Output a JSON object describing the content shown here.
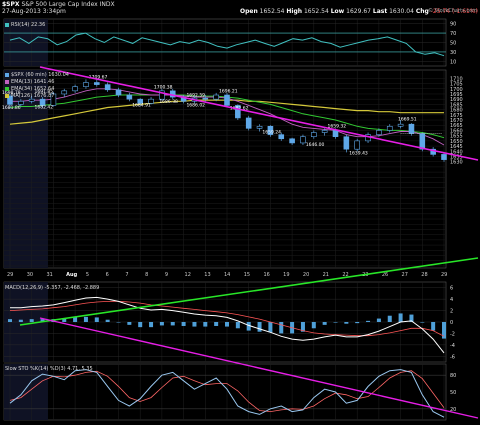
{
  "header": {
    "symbol": "$SPX",
    "name": "S&P 500 Large Cap Index",
    "exchange": "INDX",
    "date": "27-Aug-2013 3:34pm",
    "open_label": "Open",
    "open": "1652.54",
    "high_label": "High",
    "high": "1652.54",
    "low_label": "Low",
    "low": "1629.67",
    "last_label": "Last",
    "last": "1630.04",
    "chg_label": "Chg",
    "chg": "-25.74 (-1.61%)",
    "copyright": "© StockCharts.com"
  },
  "colors": {
    "price": "#5fa8e8",
    "ema": "#c060c0",
    "ema34": "#32c832",
    "ma": "#d4c83a",
    "trend_magenta": "#e61ee6",
    "trend_green": "#28e628",
    "rsi": "#40c0c0"
  },
  "chart_data": [
    {
      "type": "line",
      "panel": "RSI",
      "legend": "RSI(14) 22.36",
      "yticks": [
        90,
        70,
        50,
        30,
        10
      ],
      "ylim": [
        0,
        100
      ],
      "levels": [
        70,
        30
      ],
      "values": [
        55,
        60,
        48,
        62,
        58,
        45,
        52,
        66,
        70,
        58,
        50,
        62,
        55,
        48,
        60,
        55,
        50,
        45,
        52,
        48,
        55,
        50,
        42,
        38,
        45,
        50,
        55,
        48,
        42,
        50,
        58,
        55,
        60,
        52,
        48,
        40,
        45,
        50,
        55,
        58,
        62,
        55,
        48,
        30,
        25,
        28,
        22
      ]
    },
    {
      "type": "candlestick",
      "panel": "price",
      "legend": [
        "$SPX (60 min) 1630.04",
        "EMA(13) 1641.46",
        "EMA(34) 1652.64",
        "MA(126) 1676.87"
      ],
      "ylim": [
        1528,
        1718
      ],
      "yticks": [
        1530,
        1535,
        1540,
        1545,
        1550,
        1555,
        1560,
        1565,
        1570,
        1575,
        1580,
        1585,
        1590,
        1595,
        1600,
        1605,
        1610,
        1615,
        1620,
        1625,
        1630,
        1635,
        1640,
        1645,
        1650,
        1655,
        1660,
        1665,
        1670,
        1675,
        1680,
        1685,
        1690,
        1695,
        1700,
        1705,
        1710
      ],
      "ytick_labels": [
        "1710",
        "1705",
        "1700",
        "1695",
        "1690",
        "1685",
        "1680",
        "1675",
        "1670",
        "1665",
        "1660",
        "1655",
        "1650",
        "1645",
        "1640",
        "1635",
        "1630"
      ],
      "ytick_label_values": [
        1710,
        1705,
        1700,
        1695,
        1690,
        1685,
        1680,
        1675,
        1670,
        1665,
        1660,
        1655,
        1650,
        1645,
        1640,
        1635,
        1630
      ],
      "x_labels": [
        "29",
        "30",
        "31",
        "Aug",
        "5",
        "6",
        "7",
        "8",
        "9",
        "12",
        "13",
        "14",
        "15",
        "16",
        "19",
        "20",
        "21",
        "22",
        "23",
        "26",
        "27",
        "28",
        "29"
      ],
      "annotations": [
        {
          "text": "1709.67",
          "x": 8,
          "y": 1709.67
        },
        {
          "text": "1698.78",
          "x": 0,
          "y": 1695
        },
        {
          "text": "1691.85",
          "x": 3,
          "y": 1696
        },
        {
          "text": "1681.86",
          "x": 0,
          "y": 1680.5
        },
        {
          "text": "1682.42",
          "x": 3,
          "y": 1681
        },
        {
          "text": "1700.38",
          "x": 14,
          "y": 1700.38
        },
        {
          "text": "1696.21",
          "x": 20,
          "y": 1696.21
        },
        {
          "text": "1692.59",
          "x": 17,
          "y": 1692.59
        },
        {
          "text": "1684.91",
          "x": 12,
          "y": 1683
        },
        {
          "text": "1686.38",
          "x": 14.5,
          "y": 1686.38
        },
        {
          "text": "1686.02",
          "x": 17,
          "y": 1683
        },
        {
          "text": "1682.62",
          "x": 21,
          "y": 1680
        },
        {
          "text": "1659.24",
          "x": 24,
          "y": 1657
        },
        {
          "text": "1659.32",
          "x": 30,
          "y": 1663
        },
        {
          "text": "1646.00",
          "x": 28,
          "y": 1645
        },
        {
          "text": "1639.43",
          "x": 32,
          "y": 1637
        },
        {
          "text": "1669.51",
          "x": 36.5,
          "y": 1669.51
        }
      ],
      "candles": [
        [
          1693,
          1695,
          1681,
          1685
        ],
        [
          1685,
          1690,
          1683,
          1688
        ],
        [
          1688,
          1693,
          1686,
          1690
        ],
        [
          1690,
          1692,
          1682,
          1684
        ],
        [
          1684,
          1697,
          1683,
          1695
        ],
        [
          1695,
          1700,
          1692,
          1698
        ],
        [
          1698,
          1704,
          1696,
          1702
        ],
        [
          1702,
          1709,
          1700,
          1706
        ],
        [
          1706,
          1710,
          1702,
          1704
        ],
        [
          1704,
          1706,
          1697,
          1699
        ],
        [
          1699,
          1701,
          1692,
          1694
        ],
        [
          1694,
          1696,
          1688,
          1690
        ],
        [
          1690,
          1691,
          1683,
          1686
        ],
        [
          1686,
          1692,
          1685,
          1690
        ],
        [
          1690,
          1700,
          1689,
          1698
        ],
        [
          1698,
          1700,
          1690,
          1692
        ],
        [
          1692,
          1694,
          1686,
          1688
        ],
        [
          1688,
          1693,
          1686,
          1691
        ],
        [
          1691,
          1694,
          1687,
          1690
        ],
        [
          1690,
          1696,
          1688,
          1694
        ],
        [
          1694,
          1696,
          1682,
          1684
        ],
        [
          1684,
          1685,
          1670,
          1672
        ],
        [
          1672,
          1674,
          1660,
          1662
        ],
        [
          1662,
          1666,
          1659,
          1664
        ],
        [
          1664,
          1665,
          1654,
          1656
        ],
        [
          1656,
          1658,
          1650,
          1652
        ],
        [
          1652,
          1653,
          1646,
          1648
        ],
        [
          1648,
          1656,
          1646,
          1654
        ],
        [
          1654,
          1660,
          1652,
          1658
        ],
        [
          1658,
          1662,
          1655,
          1660
        ],
        [
          1660,
          1662,
          1652,
          1654
        ],
        [
          1654,
          1656,
          1639,
          1642
        ],
        [
          1642,
          1652,
          1640,
          1650
        ],
        [
          1650,
          1658,
          1648,
          1656
        ],
        [
          1656,
          1662,
          1654,
          1660
        ],
        [
          1660,
          1666,
          1658,
          1664
        ],
        [
          1664,
          1670,
          1662,
          1666
        ],
        [
          1666,
          1667,
          1655,
          1657
        ],
        [
          1657,
          1658,
          1640,
          1642
        ],
        [
          1642,
          1644,
          1635,
          1637
        ],
        [
          1637,
          1639,
          1630,
          1632
        ]
      ],
      "ema13": [
        1688,
        1688,
        1689,
        1689,
        1690,
        1692,
        1695,
        1698,
        1700,
        1700,
        1699,
        1697,
        1695,
        1694,
        1694,
        1694,
        1693,
        1692,
        1692,
        1692,
        1691,
        1688,
        1684,
        1680,
        1676,
        1671,
        1666,
        1663,
        1662,
        1661,
        1660,
        1656,
        1654,
        1654,
        1655,
        1657,
        1659,
        1659,
        1656,
        1652,
        1646
      ],
      "ema34": [
        1682,
        1683,
        1683,
        1684,
        1685,
        1686,
        1688,
        1690,
        1692,
        1693,
        1694,
        1694,
        1694,
        1694,
        1694,
        1694,
        1694,
        1693,
        1693,
        1693,
        1692,
        1691,
        1689,
        1687,
        1685,
        1682,
        1679,
        1676,
        1674,
        1672,
        1670,
        1667,
        1664,
        1662,
        1661,
        1660,
        1660,
        1659,
        1658,
        1656,
        1653
      ],
      "ma126": [
        1666,
        1667,
        1668,
        1670,
        1672,
        1674,
        1676,
        1678,
        1680,
        1682,
        1683,
        1684,
        1685,
        1686,
        1687,
        1688,
        1688,
        1689,
        1689,
        1689,
        1689,
        1689,
        1688,
        1688,
        1687,
        1686,
        1685,
        1684,
        1683,
        1682,
        1681,
        1680,
        1679,
        1679,
        1678,
        1678,
        1677,
        1677,
        1677,
        1677,
        1677
      ]
    },
    {
      "type": "line",
      "panel": "MACD",
      "legend": "MACD(12,26,9) -5.357, -2.468, -2.889",
      "yticks": [
        6,
        4,
        2,
        0,
        -2,
        -4,
        -6
      ],
      "ylim": [
        -7,
        7
      ],
      "macd": [
        2.5,
        2.5,
        2.7,
        2.8,
        3.0,
        3.4,
        3.8,
        4.2,
        4.3,
        4.0,
        3.6,
        3.0,
        2.4,
        2.1,
        2.2,
        2.0,
        1.7,
        1.4,
        1.2,
        1.1,
        0.8,
        0.2,
        -0.6,
        -1.2,
        -1.8,
        -2.5,
        -3.0,
        -3.2,
        -3.0,
        -2.6,
        -2.3,
        -2.6,
        -2.6,
        -2.2,
        -1.6,
        -0.8,
        0.0,
        0.2,
        -1.2,
        -3.0,
        -5.4
      ],
      "signal": [
        2.0,
        2.1,
        2.2,
        2.3,
        2.5,
        2.7,
        3.0,
        3.3,
        3.5,
        3.6,
        3.6,
        3.5,
        3.3,
        3.0,
        2.8,
        2.6,
        2.4,
        2.2,
        2.0,
        1.8,
        1.6,
        1.3,
        0.9,
        0.5,
        0.0,
        -0.5,
        -1.0,
        -1.5,
        -1.9,
        -2.1,
        -2.2,
        -2.3,
        -2.4,
        -2.4,
        -2.2,
        -1.9,
        -1.5,
        -1.1,
        -1.1,
        -1.5,
        -2.5
      ],
      "histogram": [
        0.5,
        0.4,
        0.5,
        0.5,
        0.5,
        0.7,
        0.8,
        0.9,
        0.8,
        0.4,
        0.0,
        -0.5,
        -0.9,
        -0.9,
        -0.6,
        -0.6,
        -0.7,
        -0.8,
        -0.8,
        -0.7,
        -0.8,
        -1.1,
        -1.5,
        -1.7,
        -1.8,
        -2.0,
        -2.0,
        -1.7,
        -1.1,
        -0.5,
        -0.1,
        -0.3,
        -0.2,
        0.2,
        0.6,
        1.1,
        1.5,
        1.3,
        -0.1,
        -1.5,
        -2.9
      ]
    },
    {
      "type": "line",
      "panel": "Slow STO",
      "legend": "Slow STO %K(14) %D(3) 4.71, 5.35",
      "yticks": [
        80,
        50,
        20
      ],
      "ylim": [
        0,
        100
      ],
      "levels": [
        80,
        20
      ],
      "k": [
        30,
        45,
        70,
        82,
        78,
        72,
        88,
        90,
        85,
        60,
        35,
        25,
        38,
        60,
        80,
        85,
        70,
        55,
        65,
        75,
        55,
        25,
        15,
        10,
        20,
        25,
        15,
        18,
        40,
        55,
        50,
        30,
        35,
        60,
        78,
        88,
        90,
        85,
        45,
        15,
        5
      ],
      "d": [
        35,
        40,
        55,
        70,
        78,
        77,
        80,
        85,
        87,
        78,
        60,
        40,
        33,
        40,
        58,
        75,
        78,
        70,
        63,
        65,
        65,
        52,
        32,
        17,
        15,
        18,
        20,
        19,
        25,
        38,
        48,
        45,
        38,
        42,
        58,
        75,
        85,
        88,
        74,
        48,
        22
      ]
    }
  ]
}
